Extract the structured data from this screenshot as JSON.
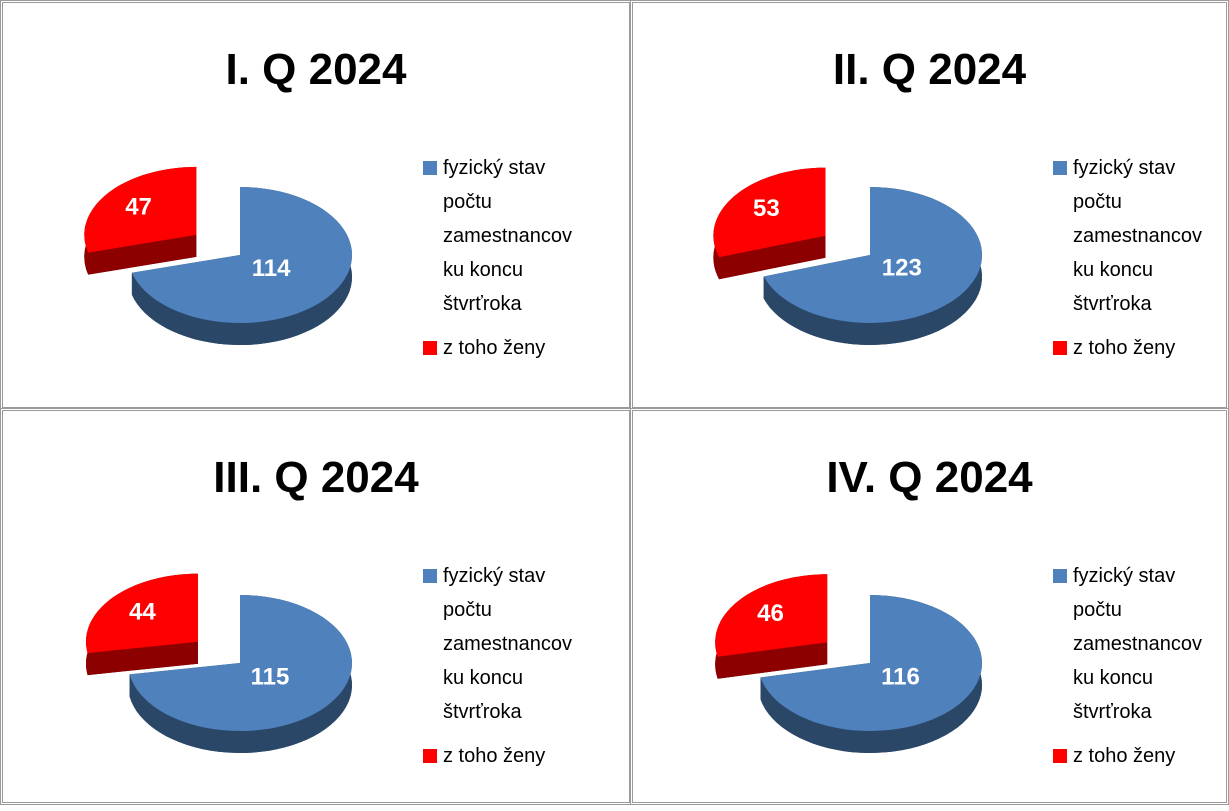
{
  "chart_data": [
    {
      "type": "pie",
      "title": "I. Q 2024",
      "categories": [
        "fyzický stav počtu zamestnancov ku koncu štvrťroka",
        "z toho ženy"
      ],
      "values": [
        114,
        47
      ],
      "colors": [
        "#4f81bd",
        "#ff0000"
      ]
    },
    {
      "type": "pie",
      "title": "II. Q 2024",
      "categories": [
        "fyzický stav počtu zamestnancov ku koncu štvrťroka",
        "z toho ženy"
      ],
      "values": [
        123,
        53
      ],
      "colors": [
        "#4f81bd",
        "#ff0000"
      ]
    },
    {
      "type": "pie",
      "title": "III. Q 2024",
      "categories": [
        "fyzický stav počtu zamestnancov ku koncu štvrťroka",
        "z toho ženy"
      ],
      "values": [
        115,
        44
      ],
      "colors": [
        "#4f81bd",
        "#ff0000"
      ]
    },
    {
      "type": "pie",
      "title": "IV. Q 2024",
      "categories": [
        "fyzický stav počtu zamestnancov ku koncu štvrťroka",
        "z toho ženy"
      ],
      "values": [
        116,
        46
      ],
      "colors": [
        "#4f81bd",
        "#ff0000"
      ]
    }
  ]
}
